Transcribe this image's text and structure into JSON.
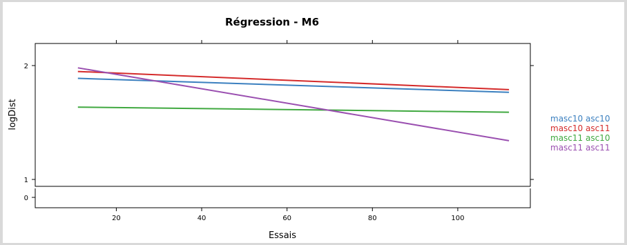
{
  "chart_data": {
    "type": "line",
    "title": "Régression - M6",
    "xlabel": "Essais",
    "ylabel": "logDist",
    "xlim": [
      1,
      117
    ],
    "x_ticks": [
      20,
      40,
      60,
      80,
      100
    ],
    "y_ticks": [
      1,
      2
    ],
    "y_ticks_lower": [
      0
    ],
    "grid": false,
    "legend_position": "right",
    "series": [
      {
        "name": "masc10 asc10",
        "color": "#3a7fbf",
        "x": [
          11,
          112
        ],
        "values": [
          1.888,
          1.765
        ]
      },
      {
        "name": "masc10 asc11",
        "color": "#d42a2a",
        "x": [
          11,
          112
        ],
        "values": [
          1.948,
          1.789
        ]
      },
      {
        "name": "masc11 asc10",
        "color": "#3fa83f",
        "x": [
          11,
          112
        ],
        "values": [
          1.635,
          1.59
        ]
      },
      {
        "name": "masc11 asc11",
        "color": "#9a4fb0",
        "x": [
          11,
          112
        ],
        "values": [
          1.98,
          1.34
        ]
      }
    ]
  }
}
